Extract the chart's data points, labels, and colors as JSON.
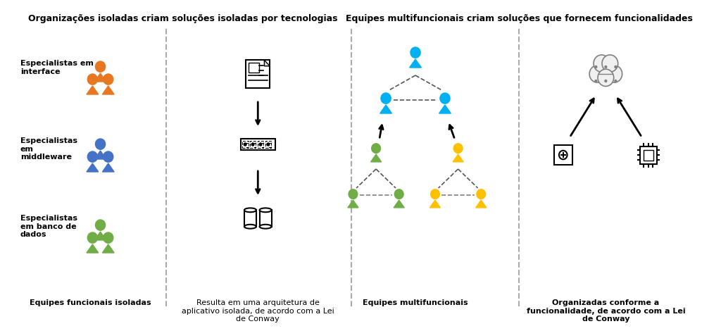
{
  "title_left": "Organizações isoladas criam soluções isoladas por tecnologias",
  "title_right": "Equipes multifuncionais criam soluções que fornecem funcionalidades",
  "label_team_isolated": "Equipes funcionais isoladas",
  "label_architecture": "Resulta em uma arquitetura de\naplicativo isolada, de acordo com a Lei\nde Conway",
  "label_multifunc": "Equipes multifuncionais",
  "label_organized": "Organizadas conforme a\nfuncionalidade, de acordo com a Lei\nde Conway",
  "label_interface": "Especialistas em\ninterface",
  "label_middleware": "Especialistas\nem\nmiddleware",
  "label_database": "Especialistas\nem banco de\ndados",
  "bg_color": "#ffffff",
  "text_color": "#000000",
  "dashed_line_color": "#aaaaaa",
  "orange_color": "#E87722",
  "blue_color": "#4472C4",
  "green_color": "#70AD47",
  "yellow_color": "#FFC000",
  "light_blue_color": "#00B0F0",
  "gray_color": "#808080"
}
